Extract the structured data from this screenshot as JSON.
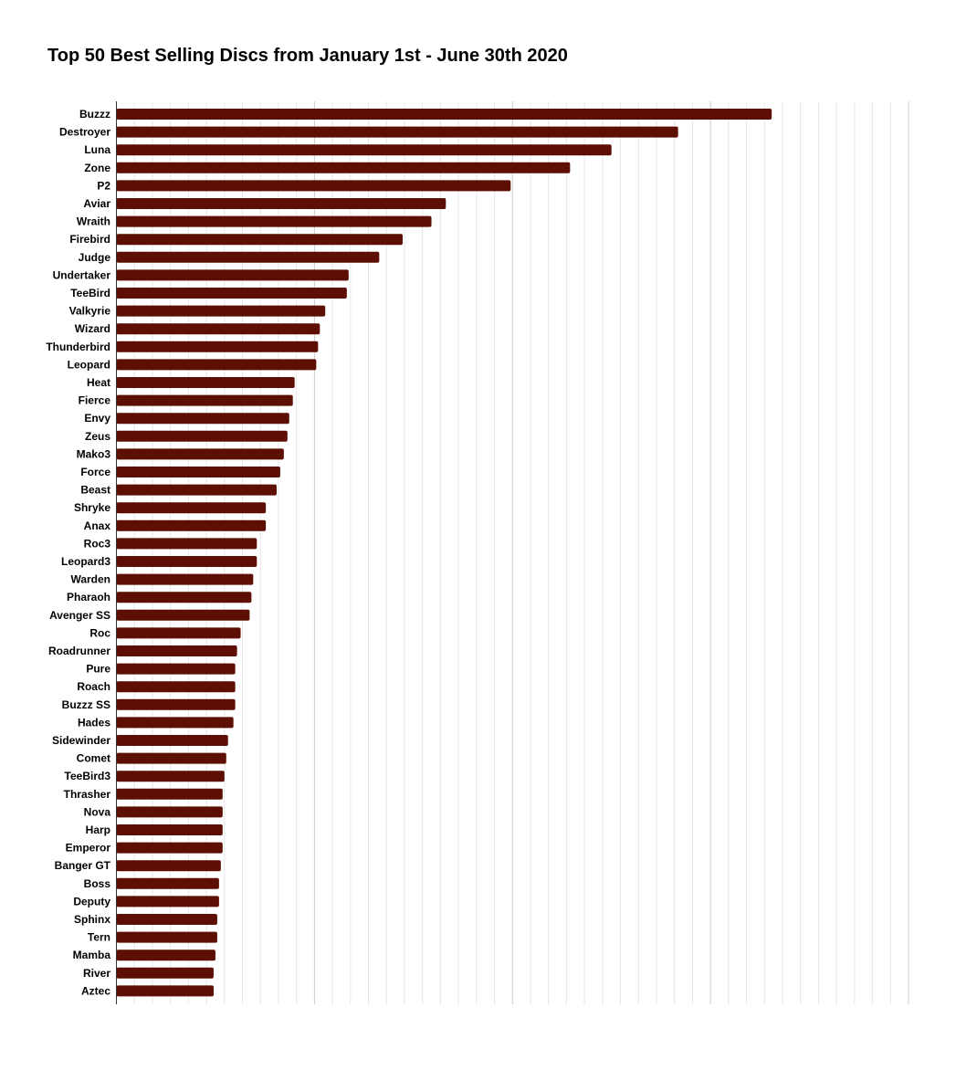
{
  "chart_data": {
    "type": "bar",
    "orientation": "horizontal",
    "title": "Top 50 Best Selling Discs from January 1st - June 30th 2020",
    "xlabel": "",
    "ylabel": "",
    "legend": "none",
    "grid": true,
    "bar_color": "#5c0f02",
    "xlim": [
      0,
      440
    ],
    "categories": [
      "Buzzz",
      "Destroyer",
      "Luna",
      "Zone",
      "P2",
      "Aviar",
      "Wraith",
      "Firebird",
      "Judge",
      "Undertaker",
      "TeeBird",
      "Valkyrie",
      "Wizard",
      "Thunderbird",
      "Leopard",
      "Heat",
      "Fierce",
      "Envy",
      "Zeus",
      "Mako3",
      "Force",
      "Beast",
      "Shryke",
      "Anax",
      "Roc3",
      "Leopard3",
      "Warden",
      "Pharaoh",
      "Avenger SS",
      "Roc",
      "Roadrunner",
      "Pure",
      "Roach",
      "Buzzz SS",
      "Hades",
      "Sidewinder",
      "Comet",
      "TeeBird3",
      "Thrasher",
      "Nova",
      "Harp",
      "Emperor",
      "Banger GT",
      "Boss",
      "Deputy",
      "Sphinx",
      "Tern",
      "Mamba",
      "River",
      "Aztec"
    ],
    "values": [
      364,
      312,
      275,
      252,
      219,
      183,
      175,
      159,
      146,
      129,
      128,
      116,
      113,
      112,
      111,
      99,
      98,
      96,
      95,
      93,
      91,
      89,
      83,
      83,
      78,
      78,
      76,
      75,
      74,
      69,
      67,
      66,
      66,
      66,
      65,
      62,
      61,
      60,
      59,
      59,
      59,
      59,
      58,
      57,
      57,
      56,
      56,
      55,
      54,
      54
    ]
  }
}
